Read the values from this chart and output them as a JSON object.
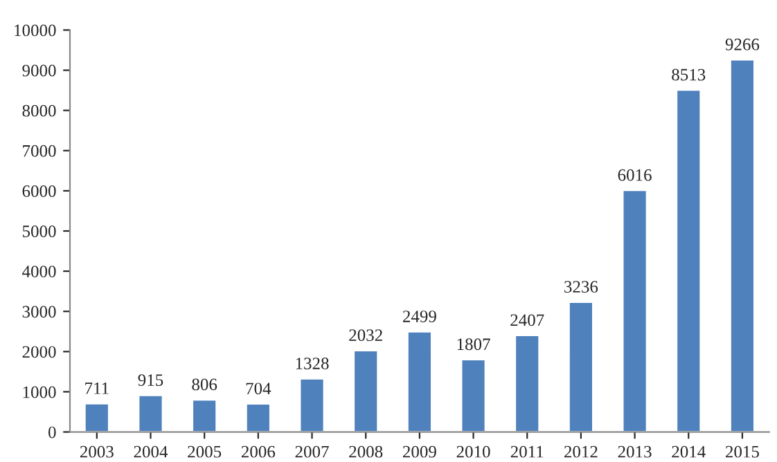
{
  "chart_data": {
    "type": "bar",
    "categories": [
      "2003",
      "2004",
      "2005",
      "2006",
      "2007",
      "2008",
      "2009",
      "2010",
      "2011",
      "2012",
      "2013",
      "2014",
      "2015"
    ],
    "values": [
      711,
      915,
      806,
      704,
      1328,
      2032,
      2499,
      1807,
      2407,
      3236,
      6016,
      8513,
      9266
    ],
    "color": "#4f81bd",
    "ylim": [
      0,
      10000
    ],
    "yticks": [
      0,
      1000,
      2000,
      3000,
      4000,
      5000,
      6000,
      7000,
      8000,
      9000,
      10000
    ],
    "data_labels": true,
    "grid": false,
    "legend": false
  }
}
